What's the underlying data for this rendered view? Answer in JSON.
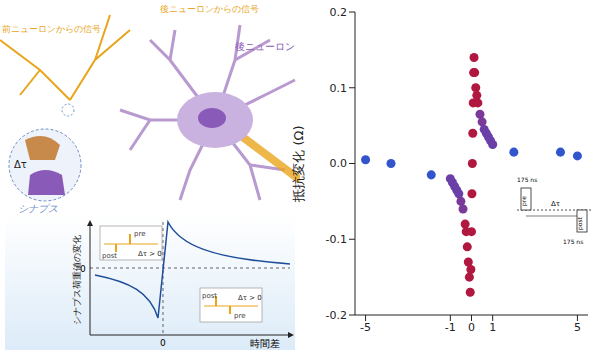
{
  "chart_data": {
    "type": "scatter",
    "ylabel": "抵抗変化 (Ω)",
    "marker": "circle",
    "x": [
      -5,
      -3.8,
      -1.9,
      -1.0,
      -0.9,
      -0.8,
      -0.7,
      -0.6,
      -0.5,
      -0.4,
      -0.3,
      -0.25,
      -0.2,
      -0.15,
      -0.1,
      -0.06,
      -0.03,
      0,
      0.02,
      0.04,
      0.06,
      0.08,
      0.1,
      0.12,
      0.15,
      0.2,
      0.25,
      0.3,
      0.4,
      0.5,
      0.6,
      0.7,
      0.8,
      0.9,
      1.0,
      2.0,
      4.2,
      5
    ],
    "values": [
      0.005,
      0.0,
      -0.015,
      -0.02,
      -0.025,
      -0.03,
      -0.035,
      -0.04,
      -0.05,
      -0.06,
      -0.08,
      -0.09,
      -0.11,
      -0.13,
      -0.15,
      -0.17,
      -0.14,
      -0.09,
      -0.04,
      0.0,
      0.04,
      0.08,
      0.12,
      0.14,
      0.12,
      0.1,
      0.09,
      0.08,
      0.065,
      0.055,
      0.045,
      0.04,
      0.035,
      0.03,
      0.025,
      0.015,
      0.015,
      0.01
    ],
    "colors": [
      "#3355cc",
      "#3355cc",
      "#3355cc",
      "#6a3fa8",
      "#6a3fa8",
      "#6a3fa8",
      "#6a3fa8",
      "#6a3fa8",
      "#7a3a9a",
      "#7a3a9a",
      "#b01840",
      "#b01840",
      "#b01840",
      "#b01840",
      "#b01840",
      "#b01840",
      "#b01840",
      "#b01840",
      "#b01840",
      "#b01840",
      "#b01840",
      "#b01840",
      "#b01840",
      "#b01840",
      "#b01840",
      "#b01840",
      "#b01840",
      "#b01840",
      "#7a3a9a",
      "#7a3a9a",
      "#6a3fa8",
      "#6a3fa8",
      "#6a3fa8",
      "#6a3fa8",
      "#6a3fa8",
      "#3355cc",
      "#3355cc",
      "#3355cc"
    ],
    "xlim": [
      -5.5,
      5.5
    ],
    "xticks": [
      -5,
      -1,
      0,
      1,
      5
    ],
    "ylim": [
      -0.2,
      0.2
    ],
    "yticks": [
      -0.2,
      -0.1,
      {
        "value": 0,
        "label": "0.0"
      },
      0.1,
      0.2
    ],
    "annotations": [
      "175 ns",
      "pre",
      "Δτ",
      "post",
      "175 ns"
    ]
  },
  "diagram": {
    "post_neuron": "後ニューロン",
    "post_signal": "後ニューロンからの信号",
    "pre_signal": "前ニューロンからの信号",
    "synapse": "シナプス",
    "delta": "Δτ",
    "inset_plot": {
      "ylabel": "シナプス荷重値の変化",
      "xlabel": "時間差",
      "zero_y": "0",
      "zero_x": "0",
      "boxes": [
        {
          "pre": "pre",
          "post": "post",
          "condition": "Δτ > 0"
        },
        {
          "pre": "pre",
          "post": "post",
          "condition": "Δτ > 0"
        }
      ]
    }
  }
}
